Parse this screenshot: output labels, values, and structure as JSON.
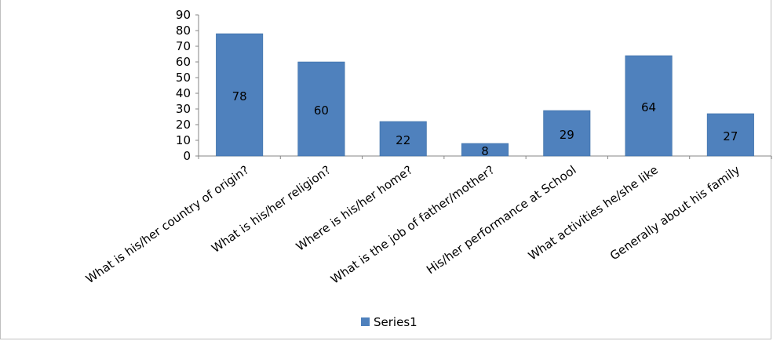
{
  "chart_data": {
    "type": "bar",
    "categories": [
      "What is his/her country of origin?",
      "What is his/her religion?",
      "Where is his/her home?",
      "What is the job of father/mother?",
      "His/her performance at School",
      "What activities he/she like",
      "Generally about his family"
    ],
    "series": [
      {
        "name": "Series1",
        "values": [
          78,
          60,
          22,
          8,
          29,
          64,
          27
        ],
        "color": "#4f81bd"
      }
    ],
    "yticks": [
      "0",
      "10",
      "20",
      "30",
      "40",
      "50",
      "60",
      "70",
      "80",
      "90"
    ],
    "ylim": [
      0,
      90
    ],
    "grid": false,
    "legend": {
      "position": "bottom",
      "label": "Series1"
    }
  }
}
